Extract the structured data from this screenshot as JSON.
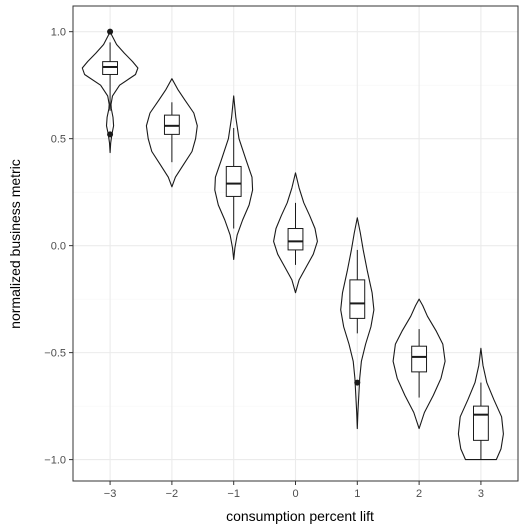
{
  "chart_data": {
    "type": "violin",
    "xlabel": "consumption percent lift",
    "ylabel": "normalized business metric",
    "categories": [
      "-3",
      "-2",
      "-1",
      "0",
      "1",
      "2",
      "3"
    ],
    "x_tick_labels": [
      "−3",
      "−2",
      "−1",
      "0",
      "1",
      "2",
      "3"
    ],
    "y_ticks": [
      1.0,
      0.5,
      0.0,
      -0.5,
      -1.0
    ],
    "y_tick_labels": [
      "1.0",
      "0.5",
      "0.0",
      "−0.5",
      "−1.0"
    ],
    "xlim": [
      -3.6,
      3.6
    ],
    "ylim": [
      -1.1,
      1.12
    ],
    "grid": true,
    "violins": [
      {
        "x": -3,
        "profile": [
          [
            0.435,
            0
          ],
          [
            0.48,
            0.01
          ],
          [
            0.52,
            0.03
          ],
          [
            0.56,
            0.06
          ],
          [
            0.6,
            0.05
          ],
          [
            0.64,
            0.02
          ],
          [
            0.66,
            0.015
          ],
          [
            0.7,
            0.04
          ],
          [
            0.75,
            0.16
          ],
          [
            0.8,
            0.43
          ],
          [
            0.83,
            0.47
          ],
          [
            0.86,
            0.38
          ],
          [
            0.9,
            0.24
          ],
          [
            0.94,
            0.11
          ],
          [
            0.98,
            0.035
          ],
          [
            1.0,
            0
          ]
        ]
      },
      {
        "x": -2,
        "profile": [
          [
            0.275,
            0
          ],
          [
            0.32,
            0.06
          ],
          [
            0.38,
            0.2
          ],
          [
            0.44,
            0.34
          ],
          [
            0.5,
            0.4
          ],
          [
            0.56,
            0.43
          ],
          [
            0.62,
            0.37
          ],
          [
            0.68,
            0.22
          ],
          [
            0.73,
            0.1
          ],
          [
            0.78,
            0
          ]
        ]
      },
      {
        "x": -1,
        "profile": [
          [
            -0.065,
            0
          ],
          [
            -0.01,
            0.02
          ],
          [
            0.05,
            0.06
          ],
          [
            0.12,
            0.15
          ],
          [
            0.19,
            0.26
          ],
          [
            0.26,
            0.32
          ],
          [
            0.32,
            0.31
          ],
          [
            0.4,
            0.21
          ],
          [
            0.5,
            0.09
          ],
          [
            0.6,
            0.035
          ],
          [
            0.7,
            0
          ]
        ]
      },
      {
        "x": 0,
        "profile": [
          [
            -0.22,
            0
          ],
          [
            -0.16,
            0.06
          ],
          [
            -0.1,
            0.18
          ],
          [
            -0.04,
            0.3
          ],
          [
            0.02,
            0.37
          ],
          [
            0.08,
            0.33
          ],
          [
            0.14,
            0.24
          ],
          [
            0.2,
            0.14
          ],
          [
            0.27,
            0.06
          ],
          [
            0.34,
            0
          ]
        ]
      },
      {
        "x": 1,
        "profile": [
          [
            -0.855,
            0
          ],
          [
            -0.78,
            0.01
          ],
          [
            -0.7,
            0.025
          ],
          [
            -0.62,
            0.04
          ],
          [
            -0.54,
            0.07
          ],
          [
            -0.46,
            0.14
          ],
          [
            -0.38,
            0.23
          ],
          [
            -0.3,
            0.28
          ],
          [
            -0.22,
            0.25
          ],
          [
            -0.12,
            0.17
          ],
          [
            -0.02,
            0.1
          ],
          [
            0.06,
            0.05
          ],
          [
            0.13,
            0
          ]
        ]
      },
      {
        "x": 2,
        "profile": [
          [
            -0.855,
            0
          ],
          [
            -0.78,
            0.09
          ],
          [
            -0.7,
            0.24
          ],
          [
            -0.62,
            0.37
          ],
          [
            -0.54,
            0.44
          ],
          [
            -0.46,
            0.4
          ],
          [
            -0.4,
            0.29
          ],
          [
            -0.33,
            0.14
          ],
          [
            -0.28,
            0.06
          ],
          [
            -0.25,
            0
          ]
        ]
      },
      {
        "x": 3,
        "profile": [
          [
            -1.0,
            0
          ],
          [
            -1.0,
            0.26
          ],
          [
            -0.95,
            0.34
          ],
          [
            -0.88,
            0.38
          ],
          [
            -0.8,
            0.35
          ],
          [
            -0.72,
            0.22
          ],
          [
            -0.64,
            0.1
          ],
          [
            -0.56,
            0.035
          ],
          [
            -0.48,
            0
          ]
        ]
      }
    ],
    "boxplots": [
      {
        "x": -3,
        "whisker_low": 0.63,
        "q1": 0.8,
        "median": 0.835,
        "q3": 0.86,
        "whisker_high": 0.95,
        "outliers": [
          1.0,
          0.52
        ]
      },
      {
        "x": -2,
        "whisker_low": 0.39,
        "q1": 0.52,
        "median": 0.56,
        "q3": 0.61,
        "whisker_high": 0.67,
        "outliers": []
      },
      {
        "x": -1,
        "whisker_low": 0.08,
        "q1": 0.23,
        "median": 0.29,
        "q3": 0.37,
        "whisker_high": 0.55,
        "outliers": []
      },
      {
        "x": 0,
        "whisker_low": -0.09,
        "q1": -0.02,
        "median": 0.02,
        "q3": 0.08,
        "whisker_high": 0.2,
        "outliers": []
      },
      {
        "x": 1,
        "whisker_low": -0.41,
        "q1": -0.34,
        "median": -0.27,
        "q3": -0.16,
        "whisker_high": -0.02,
        "outliers": [
          -0.64
        ]
      },
      {
        "x": 2,
        "whisker_low": -0.71,
        "q1": -0.59,
        "median": -0.52,
        "q3": -0.47,
        "whisker_high": -0.39,
        "outliers": []
      },
      {
        "x": 3,
        "whisker_low": -1.0,
        "q1": -0.91,
        "median": -0.79,
        "q3": -0.75,
        "whisker_high": -0.64,
        "outliers": []
      }
    ],
    "colors": {
      "panel_border": "#333333",
      "grid_major": "#ebebeb",
      "grid_minor": "#f5f5f5",
      "violin_stroke": "#1a1a1a",
      "box_fill": "#ffffff",
      "box_stroke": "#1a1a1a",
      "outlier": "#1a1a1a",
      "tick_text": "#4d4d4d"
    }
  }
}
